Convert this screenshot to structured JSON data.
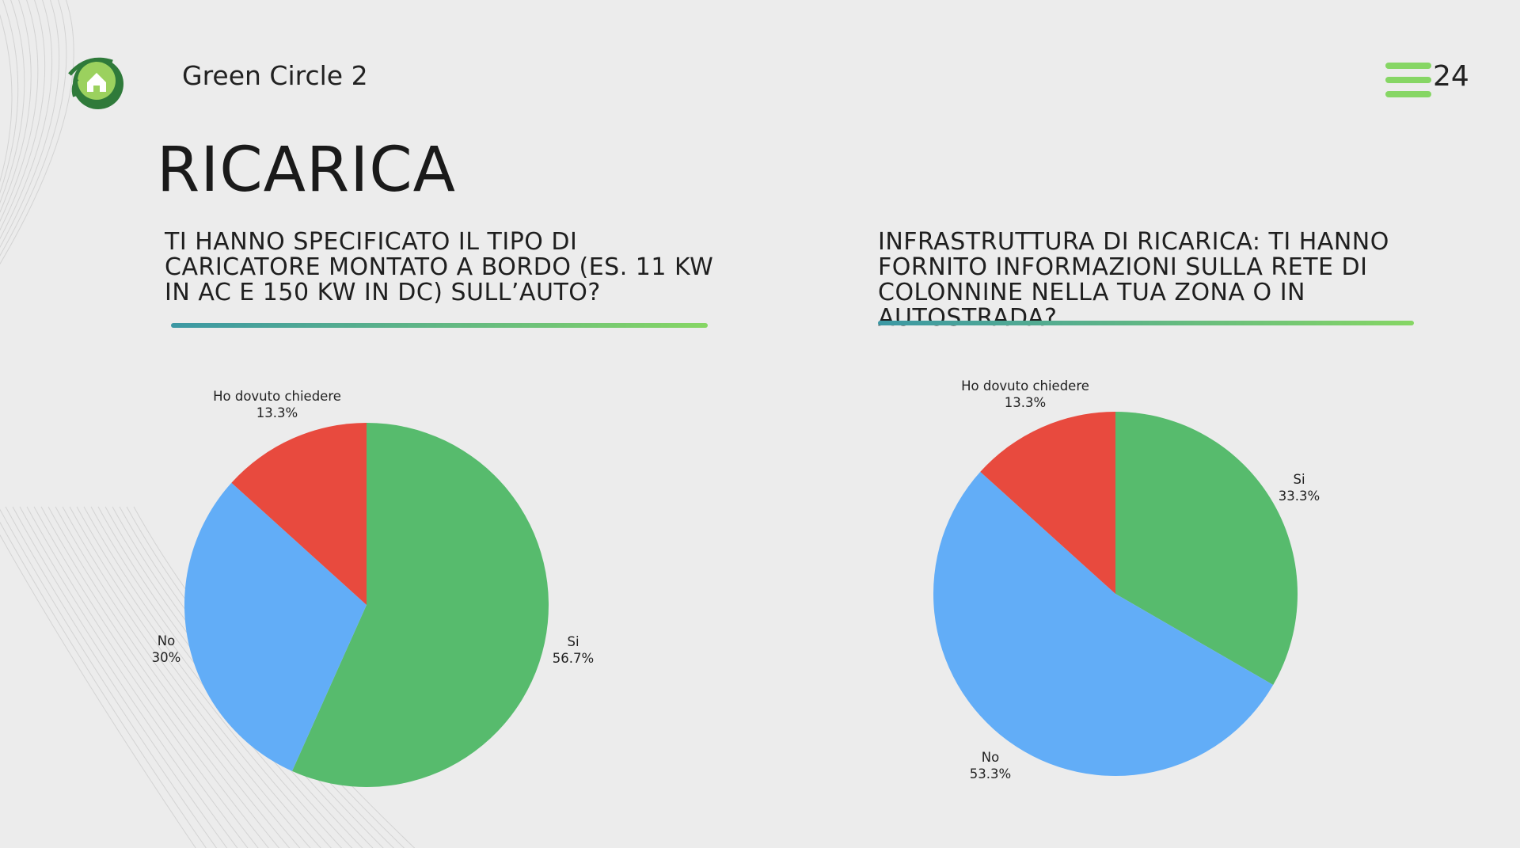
{
  "header": {
    "brand": "Green Circle 2",
    "page_number": "24",
    "logo_icon": "green-circle-logo",
    "menu_icon": "hamburger-menu-icon"
  },
  "page_title": "RICARICA",
  "colors": {
    "si": "#57bb6d",
    "no": "#62adf7",
    "ho_dovuto_chiedere": "#e84a3e",
    "accent": "#86d664"
  },
  "chart_data": [
    {
      "type": "pie",
      "title": "TI HANNO SPECIFICATO IL TIPO DI CARICATORE MONTATO A BORDO (ES. 11 KW IN AC E 150 KW IN DC) SULL’AUTO?",
      "slices": [
        {
          "label": "Si",
          "value": 56.7,
          "display": "56.7%",
          "color": "#57bb6d"
        },
        {
          "label": "No",
          "value": 30,
          "display": "30%",
          "color": "#62adf7"
        },
        {
          "label": "Ho dovuto chiedere",
          "value": 13.3,
          "display": "13.3%",
          "color": "#e84a3e"
        }
      ]
    },
    {
      "type": "pie",
      "title": "INFRASTRUTTURA DI RICARICA: TI HANNO FORNITO INFORMAZIONI SULLA RETE DI COLONNINE NELLA TUA ZONA O IN AUTOSTRADA?",
      "slices": [
        {
          "label": "Si",
          "value": 33.3,
          "display": "33.3%",
          "color": "#57bb6d"
        },
        {
          "label": "No",
          "value": 53.3,
          "display": "53.3%",
          "color": "#62adf7"
        },
        {
          "label": "Ho dovuto chiedere",
          "value": 13.3,
          "display": "13.3%",
          "color": "#e84a3e"
        }
      ]
    }
  ]
}
